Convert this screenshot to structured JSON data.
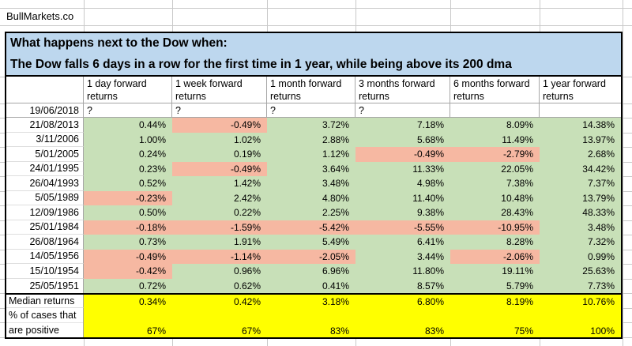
{
  "brand": "BullMarkets.co",
  "title": {
    "line1": "What happens next to the Dow when:",
    "line2": "The Dow falls 6 days in a row for the first time in 1 year, while being above its 200 dma"
  },
  "columns": [
    "1 day forward returns",
    "1 week forward returns",
    "1 month forward returns",
    "3 months forward returns",
    "6 months forward returns",
    "1 year forward returns"
  ],
  "rows": [
    {
      "date": "19/06/2018",
      "values": [
        "?",
        "?",
        "?",
        "?",
        "",
        ""
      ]
    },
    {
      "date": "21/08/2013",
      "values": [
        "0.44%",
        "-0.49%",
        "3.72%",
        "7.18%",
        "8.09%",
        "14.38%"
      ]
    },
    {
      "date": "3/11/2006",
      "values": [
        "1.00%",
        "1.02%",
        "2.88%",
        "5.68%",
        "11.49%",
        "13.97%"
      ]
    },
    {
      "date": "5/01/2005",
      "values": [
        "0.24%",
        "0.19%",
        "1.12%",
        "-0.49%",
        "-2.79%",
        "2.68%"
      ]
    },
    {
      "date": "24/01/1995",
      "values": [
        "0.23%",
        "-0.49%",
        "3.64%",
        "11.33%",
        "22.05%",
        "34.42%"
      ]
    },
    {
      "date": "26/04/1993",
      "values": [
        "0.52%",
        "1.42%",
        "3.48%",
        "4.98%",
        "7.38%",
        "7.37%"
      ]
    },
    {
      "date": "5/05/1989",
      "values": [
        "-0.23%",
        "2.42%",
        "4.80%",
        "11.40%",
        "10.48%",
        "13.79%"
      ]
    },
    {
      "date": "12/09/1986",
      "values": [
        "0.50%",
        "0.22%",
        "2.25%",
        "9.38%",
        "28.43%",
        "48.33%"
      ]
    },
    {
      "date": "25/01/1984",
      "values": [
        "-0.18%",
        "-1.59%",
        "-5.42%",
        "-5.55%",
        "-10.95%",
        "3.48%"
      ]
    },
    {
      "date": "26/08/1964",
      "values": [
        "0.73%",
        "1.91%",
        "5.49%",
        "6.41%",
        "8.28%",
        "7.32%"
      ]
    },
    {
      "date": "14/05/1956",
      "values": [
        "-0.49%",
        "-1.14%",
        "-2.05%",
        "3.44%",
        "-2.06%",
        "0.99%"
      ]
    },
    {
      "date": "15/10/1954",
      "values": [
        "-0.42%",
        "0.96%",
        "6.96%",
        "11.80%",
        "19.11%",
        "25.63%"
      ]
    },
    {
      "date": "25/05/1951",
      "values": [
        "0.72%",
        "0.62%",
        "0.41%",
        "8.57%",
        "5.79%",
        "7.73%"
      ]
    }
  ],
  "summary": {
    "median_label": "Median returns",
    "median_values": [
      "0.34%",
      "0.42%",
      "3.18%",
      "6.80%",
      "8.19%",
      "10.76%"
    ],
    "pct_label_line1": "% of cases that",
    "pct_label_line2": "are positive",
    "pct_values": [
      "67%",
      "67%",
      "83%",
      "83%",
      "75%",
      "100%"
    ]
  },
  "colors": {
    "positive_fill": "#C8E0B8",
    "negative_fill": "#F6B8A2",
    "summary_fill": "#FFFF00",
    "title_fill": "#BDD7EE"
  }
}
